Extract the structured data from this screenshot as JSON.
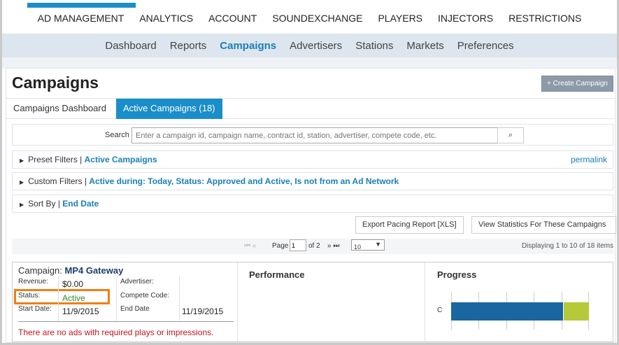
{
  "topnav": [
    "AD MANAGEMENT",
    "ANALYTICS",
    "ACCOUNT",
    "SOUNDEXCHANGE",
    "PLAYERS",
    "INJECTORS",
    "RESTRICTIONS"
  ],
  "subnav": [
    "Dashboard",
    "Reports",
    "Campaigns",
    "Advertisers",
    "Stations",
    "Markets",
    "Preferences"
  ],
  "page_title": "Campaigns",
  "create_button": "+ Create Campaign",
  "tabs": [
    "Campaigns Dashboard",
    "Active Campaigns (18)"
  ],
  "search": {
    "label": "Search",
    "placeholder": "Enter a campaign id, campaign name, contract id, station, advertiser, compete code, etc."
  },
  "filters": {
    "preset_label": "Preset Filters |",
    "preset_value": "Active Campaigns",
    "permalink": "permalink",
    "custom_label": "Custom Filters |",
    "custom_value": "Active during: Today, Status: Approved and Active, Is not from an Ad Network",
    "sort_label": "Sort By |",
    "sort_value": "End Date"
  },
  "actions": {
    "export": "Export Pacing Report [XLS]",
    "stats": "View Statistics For These Campaigns"
  },
  "pager": {
    "page_label": "Page",
    "page": "1",
    "of": "of 2",
    "per_page": "10",
    "displaying": "Displaying 1 to 10 of 18 items"
  },
  "campaign": {
    "label": "Campaign:",
    "name": "MP4 Gateway",
    "revenue_label": "Revenue:",
    "revenue": "$0.00",
    "status_label": "Status:",
    "status": "Active",
    "start_label": "Start Date:",
    "start": "11/9/2015",
    "advertiser_label": "Advertiser:",
    "compete_label": "Compete Code:",
    "end_label": "End Date",
    "end": "11/19/2015",
    "warning": "There are no ads with required plays or impressions.",
    "performance_title": "Performance",
    "progress_title": "Progress",
    "progress_row_label": "C",
    "progress": {
      "primary_fraction": 0.81,
      "secondary_fraction": 0.19,
      "primary_color": "#1a66a0",
      "secondary_color": "#b5c93a"
    }
  }
}
